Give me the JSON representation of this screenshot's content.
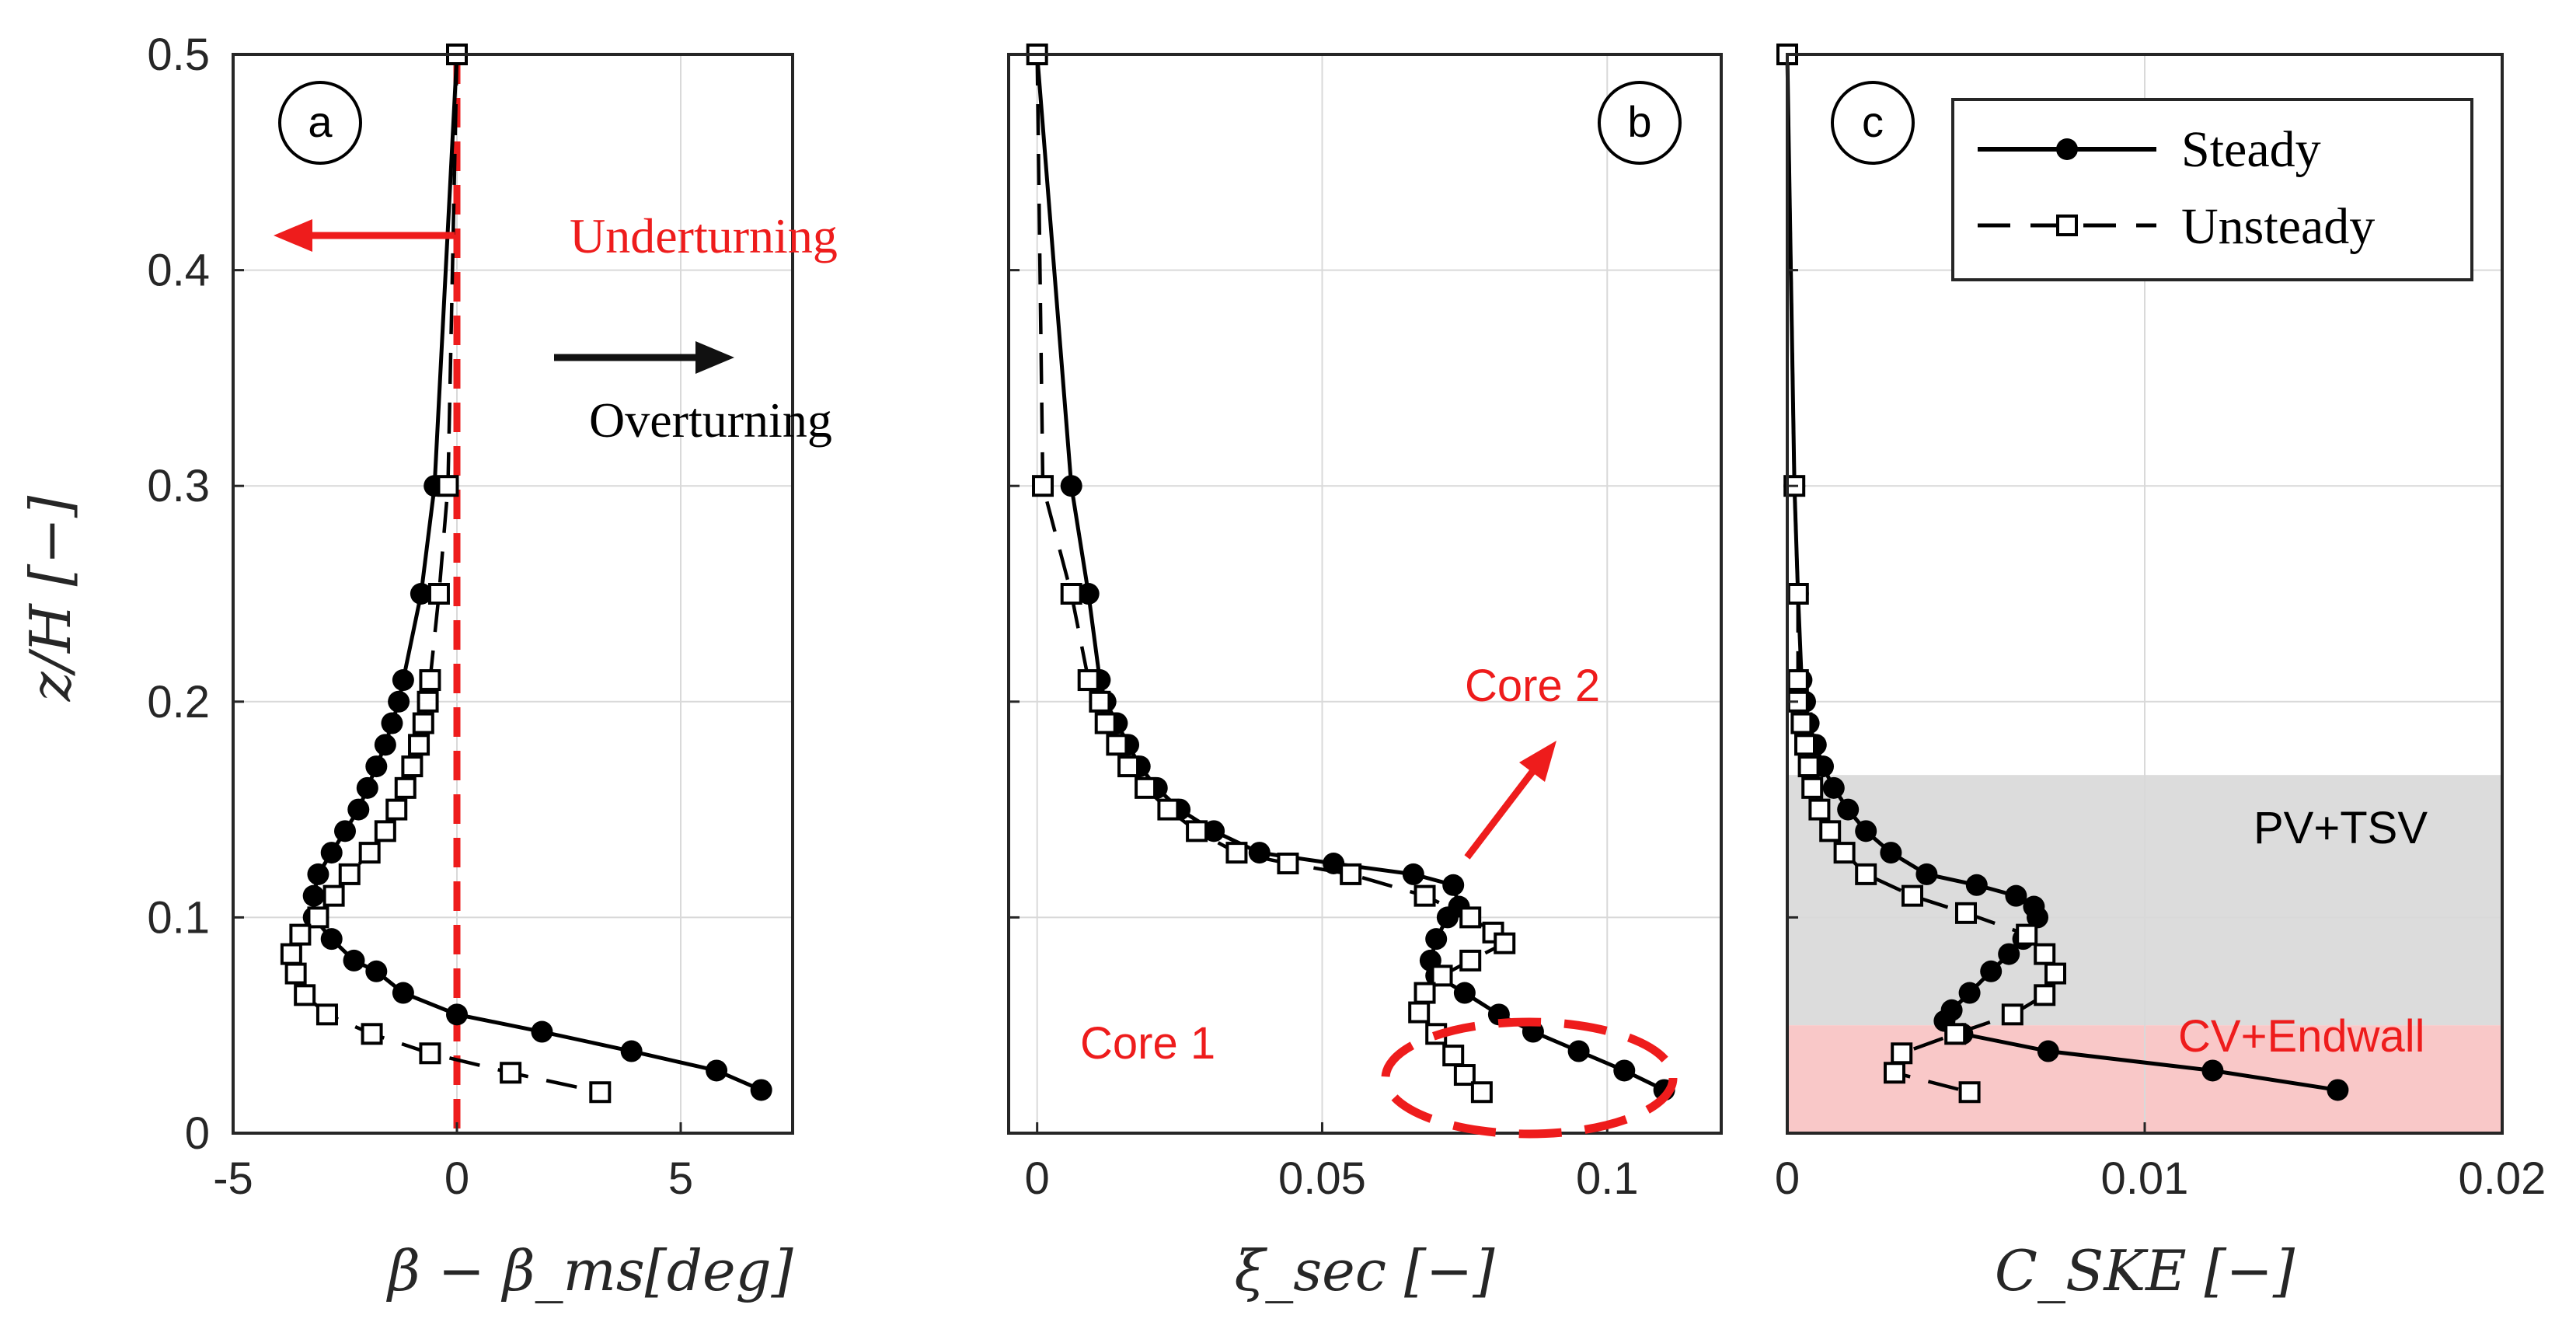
{
  "chart_data": [
    {
      "panel_label": "a",
      "type": "line",
      "xlabel": "β − β_ms[deg]",
      "ylabel": "z/H [−]",
      "xlim": [
        -5,
        7.5
      ],
      "ylim": [
        0,
        0.5
      ],
      "xticks": [
        -5,
        0,
        5
      ],
      "yticks": [
        0,
        0.1,
        0.2,
        0.3,
        0.4,
        0.5
      ],
      "xtick_labels": [
        "-5",
        "0",
        "5"
      ],
      "ytick_labels": [
        "0",
        "0.1",
        "0.2",
        "0.3",
        "0.4",
        "0.5"
      ],
      "grid": true,
      "series": [
        {
          "name": "Steady",
          "marker": "circle",
          "line": "solid",
          "points": [
            [
              0,
              0.5
            ],
            [
              -0.5,
              0.3
            ],
            [
              -0.8,
              0.25
            ],
            [
              -1.2,
              0.21
            ],
            [
              -1.3,
              0.2
            ],
            [
              -1.45,
              0.19
            ],
            [
              -1.6,
              0.18
            ],
            [
              -1.8,
              0.17
            ],
            [
              -2.0,
              0.16
            ],
            [
              -2.2,
              0.15
            ],
            [
              -2.5,
              0.14
            ],
            [
              -2.8,
              0.13
            ],
            [
              -3.1,
              0.12
            ],
            [
              -3.2,
              0.11
            ],
            [
              -3.2,
              0.1
            ],
            [
              -2.8,
              0.09
            ],
            [
              -2.3,
              0.08
            ],
            [
              -1.8,
              0.075
            ],
            [
              -1.2,
              0.065
            ],
            [
              0,
              0.055
            ],
            [
              1.9,
              0.047
            ],
            [
              3.9,
              0.038
            ],
            [
              5.8,
              0.029
            ],
            [
              6.8,
              0.02
            ]
          ]
        },
        {
          "name": "Unsteady",
          "marker": "square",
          "line": "dashed",
          "points": [
            [
              0,
              0.5
            ],
            [
              -0.2,
              0.3
            ],
            [
              -0.4,
              0.25
            ],
            [
              -0.6,
              0.21
            ],
            [
              -0.65,
              0.2
            ],
            [
              -0.75,
              0.19
            ],
            [
              -0.85,
              0.18
            ],
            [
              -1.0,
              0.17
            ],
            [
              -1.15,
              0.16
            ],
            [
              -1.35,
              0.15
            ],
            [
              -1.6,
              0.14
            ],
            [
              -1.95,
              0.13
            ],
            [
              -2.4,
              0.12
            ],
            [
              -2.75,
              0.11
            ],
            [
              -3.1,
              0.1
            ],
            [
              -3.5,
              0.092
            ],
            [
              -3.7,
              0.083
            ],
            [
              -3.6,
              0.074
            ],
            [
              -3.4,
              0.064
            ],
            [
              -2.9,
              0.055
            ],
            [
              -1.9,
              0.046
            ],
            [
              -0.6,
              0.037
            ],
            [
              1.2,
              0.028
            ],
            [
              3.2,
              0.019
            ]
          ]
        }
      ],
      "reference_line": {
        "x": 0,
        "color": "#ee1c1c",
        "style": "dashed"
      },
      "annotations": {
        "underturning": "Underturning",
        "overturning": "Overturning"
      }
    },
    {
      "panel_label": "b",
      "type": "line",
      "xlabel": "ξ_sec [−]",
      "xlim": [
        -0.005,
        0.12
      ],
      "ylim": [
        0,
        0.5
      ],
      "xticks": [
        0,
        0.05,
        0.1
      ],
      "xtick_labels": [
        "0",
        "0.05",
        "0.1"
      ],
      "grid": true,
      "series": [
        {
          "name": "Steady",
          "marker": "circle",
          "line": "solid",
          "points": [
            [
              0,
              0.5
            ],
            [
              0.006,
              0.3
            ],
            [
              0.009,
              0.25
            ],
            [
              0.011,
              0.21
            ],
            [
              0.012,
              0.2
            ],
            [
              0.014,
              0.19
            ],
            [
              0.016,
              0.18
            ],
            [
              0.018,
              0.17
            ],
            [
              0.021,
              0.16
            ],
            [
              0.025,
              0.15
            ],
            [
              0.031,
              0.14
            ],
            [
              0.039,
              0.13
            ],
            [
              0.052,
              0.125
            ],
            [
              0.066,
              0.12
            ],
            [
              0.073,
              0.115
            ],
            [
              0.074,
              0.105
            ],
            [
              0.072,
              0.1
            ],
            [
              0.07,
              0.09
            ],
            [
              0.069,
              0.08
            ],
            [
              0.07,
              0.073
            ],
            [
              0.075,
              0.065
            ],
            [
              0.081,
              0.055
            ],
            [
              0.087,
              0.047
            ],
            [
              0.095,
              0.038
            ],
            [
              0.103,
              0.029
            ],
            [
              0.11,
              0.02
            ]
          ]
        },
        {
          "name": "Unsteady",
          "marker": "square",
          "line": "dashed",
          "points": [
            [
              0,
              0.5
            ],
            [
              0.001,
              0.3
            ],
            [
              0.006,
              0.25
            ],
            [
              0.009,
              0.21
            ],
            [
              0.011,
              0.2
            ],
            [
              0.012,
              0.19
            ],
            [
              0.014,
              0.18
            ],
            [
              0.016,
              0.17
            ],
            [
              0.019,
              0.16
            ],
            [
              0.023,
              0.15
            ],
            [
              0.028,
              0.14
            ],
            [
              0.035,
              0.13
            ],
            [
              0.044,
              0.125
            ],
            [
              0.055,
              0.12
            ],
            [
              0.068,
              0.11
            ],
            [
              0.076,
              0.1
            ],
            [
              0.08,
              0.093
            ],
            [
              0.082,
              0.088
            ],
            [
              0.076,
              0.08
            ],
            [
              0.071,
              0.073
            ],
            [
              0.068,
              0.065
            ],
            [
              0.067,
              0.056
            ],
            [
              0.07,
              0.046
            ],
            [
              0.073,
              0.036
            ],
            [
              0.075,
              0.027
            ],
            [
              0.078,
              0.019
            ]
          ]
        }
      ],
      "annotations": {
        "core1": "Core 1",
        "core2": "Core 2"
      }
    },
    {
      "panel_label": "c",
      "type": "line",
      "xlabel": "C_SKE [−]",
      "xlim": [
        0,
        0.02
      ],
      "ylim": [
        0,
        0.5
      ],
      "xticks": [
        0,
        0.01,
        0.02
      ],
      "xtick_labels": [
        "0",
        "0.01",
        "0.02"
      ],
      "grid": true,
      "series": [
        {
          "name": "Steady",
          "marker": "circle",
          "line": "solid",
          "points": [
            [
              0,
              0.5
            ],
            [
              0.0002,
              0.3
            ],
            [
              0.0003,
              0.25
            ],
            [
              0.0004,
              0.21
            ],
            [
              0.0005,
              0.2
            ],
            [
              0.0006,
              0.19
            ],
            [
              0.0008,
              0.18
            ],
            [
              0.001,
              0.17
            ],
            [
              0.0013,
              0.16
            ],
            [
              0.0017,
              0.15
            ],
            [
              0.0022,
              0.14
            ],
            [
              0.0029,
              0.13
            ],
            [
              0.0039,
              0.12
            ],
            [
              0.0053,
              0.115
            ],
            [
              0.0064,
              0.11
            ],
            [
              0.0069,
              0.105
            ],
            [
              0.007,
              0.1
            ],
            [
              0.0066,
              0.09
            ],
            [
              0.0062,
              0.083
            ],
            [
              0.0057,
              0.075
            ],
            [
              0.0051,
              0.065
            ],
            [
              0.0046,
              0.057
            ],
            [
              0.0044,
              0.052
            ],
            [
              0.0049,
              0.046
            ],
            [
              0.0073,
              0.038
            ],
            [
              0.0119,
              0.029
            ],
            [
              0.0154,
              0.02
            ]
          ]
        },
        {
          "name": "Unsteady",
          "marker": "square",
          "line": "dashed",
          "points": [
            [
              0,
              0.5
            ],
            [
              0.0002,
              0.3
            ],
            [
              0.0003,
              0.25
            ],
            [
              0.0003,
              0.21
            ],
            [
              0.0003,
              0.2
            ],
            [
              0.0004,
              0.19
            ],
            [
              0.0005,
              0.18
            ],
            [
              0.0006,
              0.17
            ],
            [
              0.0007,
              0.16
            ],
            [
              0.0009,
              0.15
            ],
            [
              0.0012,
              0.14
            ],
            [
              0.0016,
              0.13
            ],
            [
              0.0022,
              0.12
            ],
            [
              0.0035,
              0.11
            ],
            [
              0.005,
              0.102
            ],
            [
              0.0067,
              0.092
            ],
            [
              0.0072,
              0.083
            ],
            [
              0.0075,
              0.074
            ],
            [
              0.0072,
              0.064
            ],
            [
              0.0063,
              0.055
            ],
            [
              0.0047,
              0.046
            ],
            [
              0.0032,
              0.037
            ],
            [
              0.003,
              0.028
            ],
            [
              0.0051,
              0.019
            ]
          ]
        }
      ],
      "bands": [
        {
          "label": "PV+TSV",
          "y_range": [
            0.05,
            0.166
          ],
          "color": "#dcdcdc"
        },
        {
          "label": "CV+Endwall",
          "y_range": [
            0,
            0.05
          ],
          "color": "#f9c8c8"
        }
      ],
      "legend": {
        "position": "top-right",
        "entries": [
          "Steady",
          "Unsteady"
        ]
      }
    }
  ],
  "colors": {
    "annotation_red": "#ee1c1c",
    "grid": "#d9d9d9",
    "axis": "#262626",
    "band_gray": "#dcdcdc",
    "band_red": "#f9c8c8"
  }
}
